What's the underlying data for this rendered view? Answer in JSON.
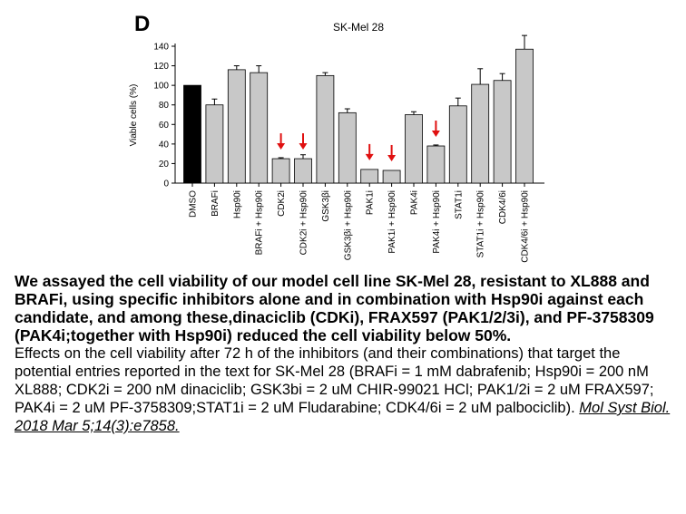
{
  "panel_label": "D",
  "chart_data": {
    "type": "bar",
    "title": "SK-Mel 28",
    "ylabel": "Viable cells (%)",
    "xlabel": "",
    "ylim": [
      0,
      140
    ],
    "yticks": [
      0,
      20,
      40,
      60,
      80,
      100,
      120,
      140
    ],
    "categories": [
      "DMSO",
      "BRAFi",
      "Hsp90i",
      "BRAFi + Hsp90i",
      "CDK2i",
      "CDK2i + Hsp90i",
      "GSK3βi",
      "GSK3βi + Hsp90i",
      "PAK1i",
      "PAK1i + Hsp90i",
      "PAK4i",
      "PAK4i + Hsp90i",
      "STAT1i",
      "STAT1i + Hsp90i",
      "CDK4/6i",
      "CDK4/6i + Hsp90i"
    ],
    "values": [
      100,
      80,
      116,
      113,
      25,
      25,
      110,
      72,
      14,
      13,
      70,
      38,
      79,
      101,
      105,
      137
    ],
    "errors": [
      0,
      6,
      4,
      7,
      1,
      4,
      3,
      4,
      0,
      0,
      3,
      1,
      8,
      16,
      7,
      14
    ],
    "colors": [
      "#000000",
      "#c8c8c8",
      "#c8c8c8",
      "#c8c8c8",
      "#c8c8c8",
      "#c8c8c8",
      "#c8c8c8",
      "#c8c8c8",
      "#c8c8c8",
      "#c8c8c8",
      "#c8c8c8",
      "#c8c8c8",
      "#c8c8c8",
      "#c8c8c8",
      "#c8c8c8",
      "#c8c8c8"
    ],
    "highlighted": [
      "CDK2i",
      "CDK2i + Hsp90i",
      "PAK1i",
      "PAK1i + Hsp90i",
      "PAK4i + Hsp90i"
    ],
    "arrow_color": "#e01010",
    "grid": false,
    "legend": "none"
  },
  "caption": {
    "bold": "We assayed the cell viability of our model cell line SK-Mel 28, resistant to XL888 and BRAFi, using specific inhibitors alone and in combination with Hsp90i against each candidate, and among these,dinaciclib (CDKi), FRAX597 (PAK1/2/3i), and PF-3758309 (PAK4i;together with Hsp90i) reduced the cell viability below 50%.",
    "body": "Effects on the cell viability after 72 h of the inhibitors (and their combinations) that target the potential entries reported in the text for SK-Mel 28 (BRAFi = 1 mM dabrafenib; Hsp90i = 200 nM XL888; CDK2i = 200 nM dinaciclib; GSK3bi = 2 uM CHIR-99021 HCl; PAK1/2i = 2 uM FRAX597; PAK4i = 2 uM PF-3758309;STAT1i = 2 uM Fludarabine; CDK4/6i = 2 uM palbociclib).",
    "citation": "Mol Syst Biol. 2018 Mar 5;14(3):e7858."
  }
}
